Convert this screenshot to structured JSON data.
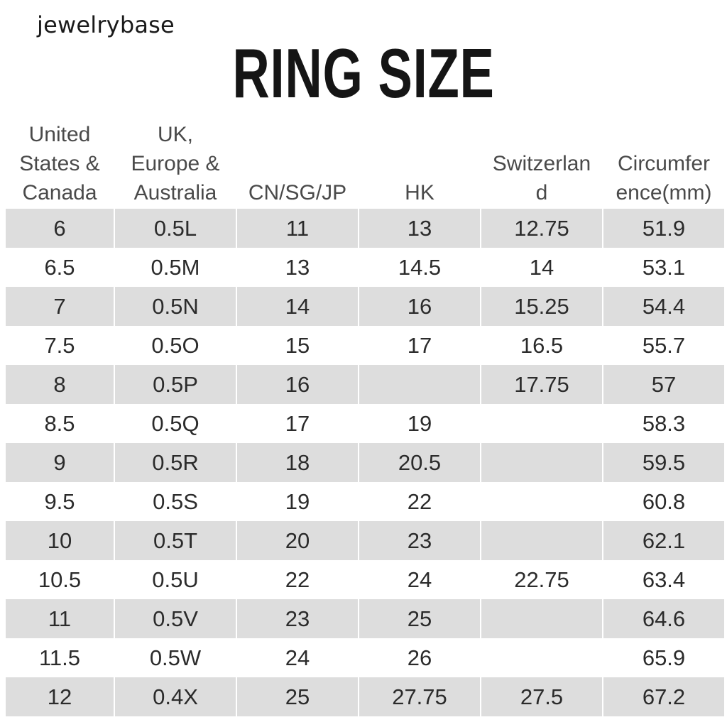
{
  "watermark": "jewelrybase",
  "title": "RING SIZE",
  "columns": [
    "United\nStates &\nCanada",
    "UK,\nEurope &\nAustralia",
    "CN/SG/JP",
    "HK",
    "Switzerlan\nd",
    "Circumfer\nence(mm)"
  ],
  "rows": [
    [
      "6",
      "0.5L",
      "11",
      "13",
      "12.75",
      "51.9"
    ],
    [
      "6.5",
      "0.5M",
      "13",
      "14.5",
      "14",
      "53.1"
    ],
    [
      "7",
      "0.5N",
      "14",
      "16",
      "15.25",
      "54.4"
    ],
    [
      "7.5",
      "0.5O",
      "15",
      "17",
      "16.5",
      "55.7"
    ],
    [
      "8",
      "0.5P",
      "16",
      "",
      "17.75",
      "57"
    ],
    [
      "8.5",
      "0.5Q",
      "17",
      "19",
      "",
      "58.3"
    ],
    [
      "9",
      "0.5R",
      "18",
      "20.5",
      "",
      "59.5"
    ],
    [
      "9.5",
      "0.5S",
      "19",
      "22",
      "",
      "60.8"
    ],
    [
      "10",
      "0.5T",
      "20",
      "23",
      "",
      "62.1"
    ],
    [
      "10.5",
      "0.5U",
      "22",
      "24",
      "22.75",
      "63.4"
    ],
    [
      "11",
      "0.5V",
      "23",
      "25",
      "",
      "64.6"
    ],
    [
      "11.5",
      "0.5W",
      "24",
      "26",
      "",
      "65.9"
    ],
    [
      "12",
      "0.4X",
      "25",
      "27.75",
      "27.5",
      "67.2"
    ]
  ]
}
